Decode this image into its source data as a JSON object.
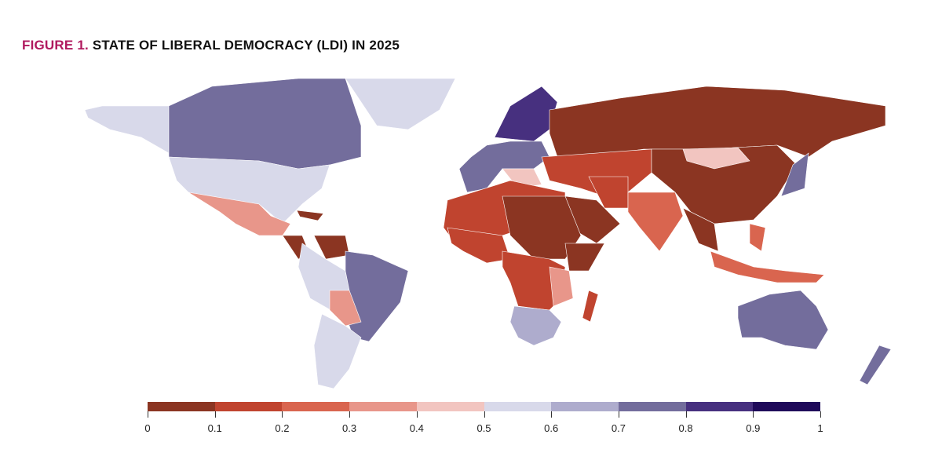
{
  "title": {
    "figure": "FIGURE 1.",
    "text": "STATE OF LIBERAL DEMOCRACY (LDI) IN 2025"
  },
  "legend": {
    "ticks": [
      "0",
      "0.1",
      "0.2",
      "0.3",
      "0.4",
      "0.5",
      "0.6",
      "0.7",
      "0.8",
      "0.9",
      "1"
    ],
    "colors": [
      "#8b3522",
      "#c0442f",
      "#d9654f",
      "#e8968a",
      "#f2c5c0",
      "#d8d9ea",
      "#aeaccd",
      "#736d9c",
      "#47307f",
      "#1f0a5a"
    ]
  },
  "map_values": {
    "canada": 0.75,
    "alaska": 0.55,
    "greenland": 0.55,
    "usa": 0.55,
    "mexico": 0.3,
    "central-america": 0.05,
    "cuba": 0.05,
    "venezuela": 0.05,
    "andes": 0.55,
    "brazil": 0.75,
    "bolivia-paraguay": 0.35,
    "southern-cone": 0.55,
    "western-europe": 0.75,
    "scandinavia": 0.85,
    "balkans": 0.45,
    "russia": 0.05,
    "china": 0.05,
    "mongolia": 0.45,
    "central-asia": 0.15,
    "arabia": 0.05,
    "iran": 0.15,
    "india": 0.25,
    "southeast-asia": 0.05,
    "indonesia": 0.25,
    "philippines": 0.25,
    "japan": 0.75,
    "north-africa": 0.15,
    "egypt-sudan": 0.05,
    "west-africa": 0.15,
    "central-africa": 0.15,
    "horn-of-africa": 0.05,
    "east-africa": 0.35,
    "southern-africa": 0.65,
    "madagascar": 0.15,
    "australia": 0.75,
    "new-zealand": 0.75
  }
}
